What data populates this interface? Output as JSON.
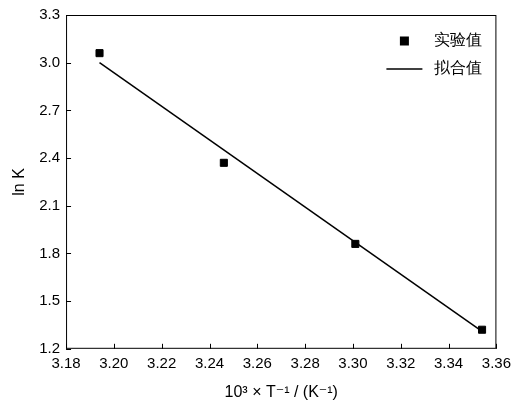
{
  "chart_data": {
    "type": "scatter",
    "x_label": "10³ × T⁻¹ / (K⁻¹)",
    "y_label": "ln K",
    "series": [
      {
        "name": "实验值",
        "type": "scatter",
        "marker": "square",
        "color": "#000000",
        "x": [
          3.194,
          3.246,
          3.301,
          3.354
        ],
        "values": [
          3.06,
          2.37,
          1.86,
          1.32
        ]
      },
      {
        "name": "拟合值",
        "type": "line",
        "line_style": "solid",
        "color": "#000000",
        "x": [
          3.194,
          3.354
        ],
        "values": [
          3.0,
          1.31
        ]
      }
    ],
    "xlim": [
      3.18,
      3.36
    ],
    "xticks": [
      3.18,
      {
        "value": 3.2,
        "label": "3.20"
      },
      3.22,
      3.24,
      3.26,
      3.28,
      {
        "value": 3.3,
        "label": "3.30"
      },
      3.32,
      3.34,
      3.36
    ],
    "ylim": [
      1.2,
      3.3
    ],
    "yticks": [
      1.2,
      1.5,
      1.8,
      2.1,
      2.4,
      2.7,
      {
        "value": 3.0,
        "label": "3.0"
      },
      3.3
    ],
    "grid": false,
    "legend": "upper right"
  }
}
